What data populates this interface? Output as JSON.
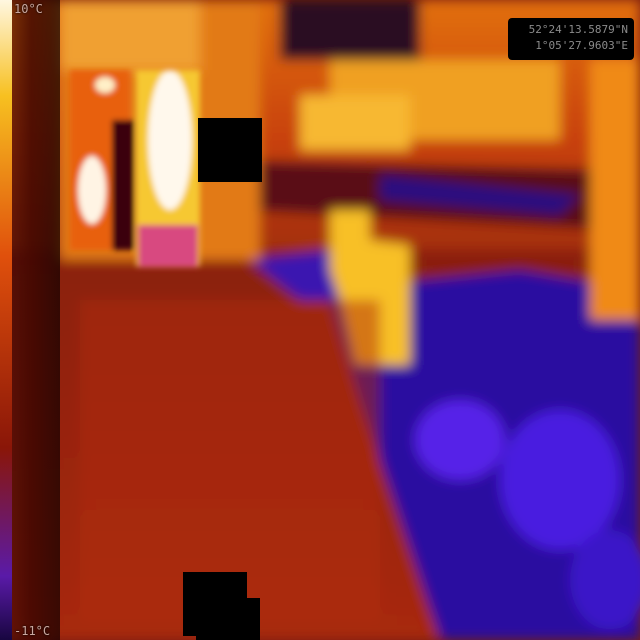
{
  "thermal_overlay": {
    "temperature_max": "10°C",
    "temperature_min": "-11°C",
    "gps_latitude": "52°24'13.5879\"N",
    "gps_longitude": "1°05'27.9603\"E"
  },
  "palette": {
    "hot": "#fff4d6",
    "warm": "#f2a71b",
    "mid": "#c6370e",
    "cool": "#7a1a08",
    "cold": "#3318b8",
    "coldest": "#16063a"
  }
}
